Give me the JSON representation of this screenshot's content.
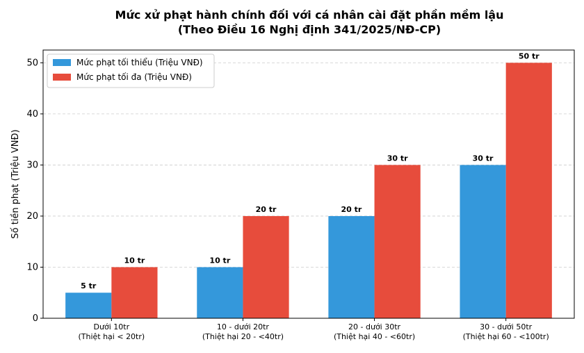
{
  "chart_data": {
    "type": "bar",
    "title": [
      "Mức xử phạt hành chính đối với cá nhân cài đặt phần mềm lậu",
      "(Theo Điều 16 Nghị định 341/2025/NĐ-CP)"
    ],
    "ylabel": "Số tiền phạt (Triệu VNĐ)",
    "categories": [
      [
        "Dưới 10tr",
        "(Thiệt hại < 20tr)"
      ],
      [
        "10 - dưới 20tr",
        "(Thiệt hại 20 - <40tr)"
      ],
      [
        "20 - dưới 30tr",
        "(Thiệt hại 40 - <60tr)"
      ],
      [
        "30 - dưới 50tr",
        "(Thiệt hại 60 - <100tr)"
      ]
    ],
    "series": [
      {
        "name": "Mức phạt tối thiểu (Triệu VNĐ)",
        "color": "#3498db",
        "values": [
          5,
          10,
          20,
          30
        ],
        "value_labels": [
          "5 tr",
          "10 tr",
          "20 tr",
          "30 tr"
        ]
      },
      {
        "name": "Mức phạt tối đa (Triệu VNĐ)",
        "color": "#e74c3c",
        "values": [
          10,
          20,
          30,
          50
        ],
        "value_labels": [
          "10 tr",
          "20 tr",
          "30 tr",
          "50 tr"
        ]
      }
    ],
    "ylim": [
      0,
      52.5
    ],
    "yticks": [
      0,
      10,
      20,
      30,
      40,
      50
    ],
    "grid": true,
    "legend": "upper left"
  }
}
